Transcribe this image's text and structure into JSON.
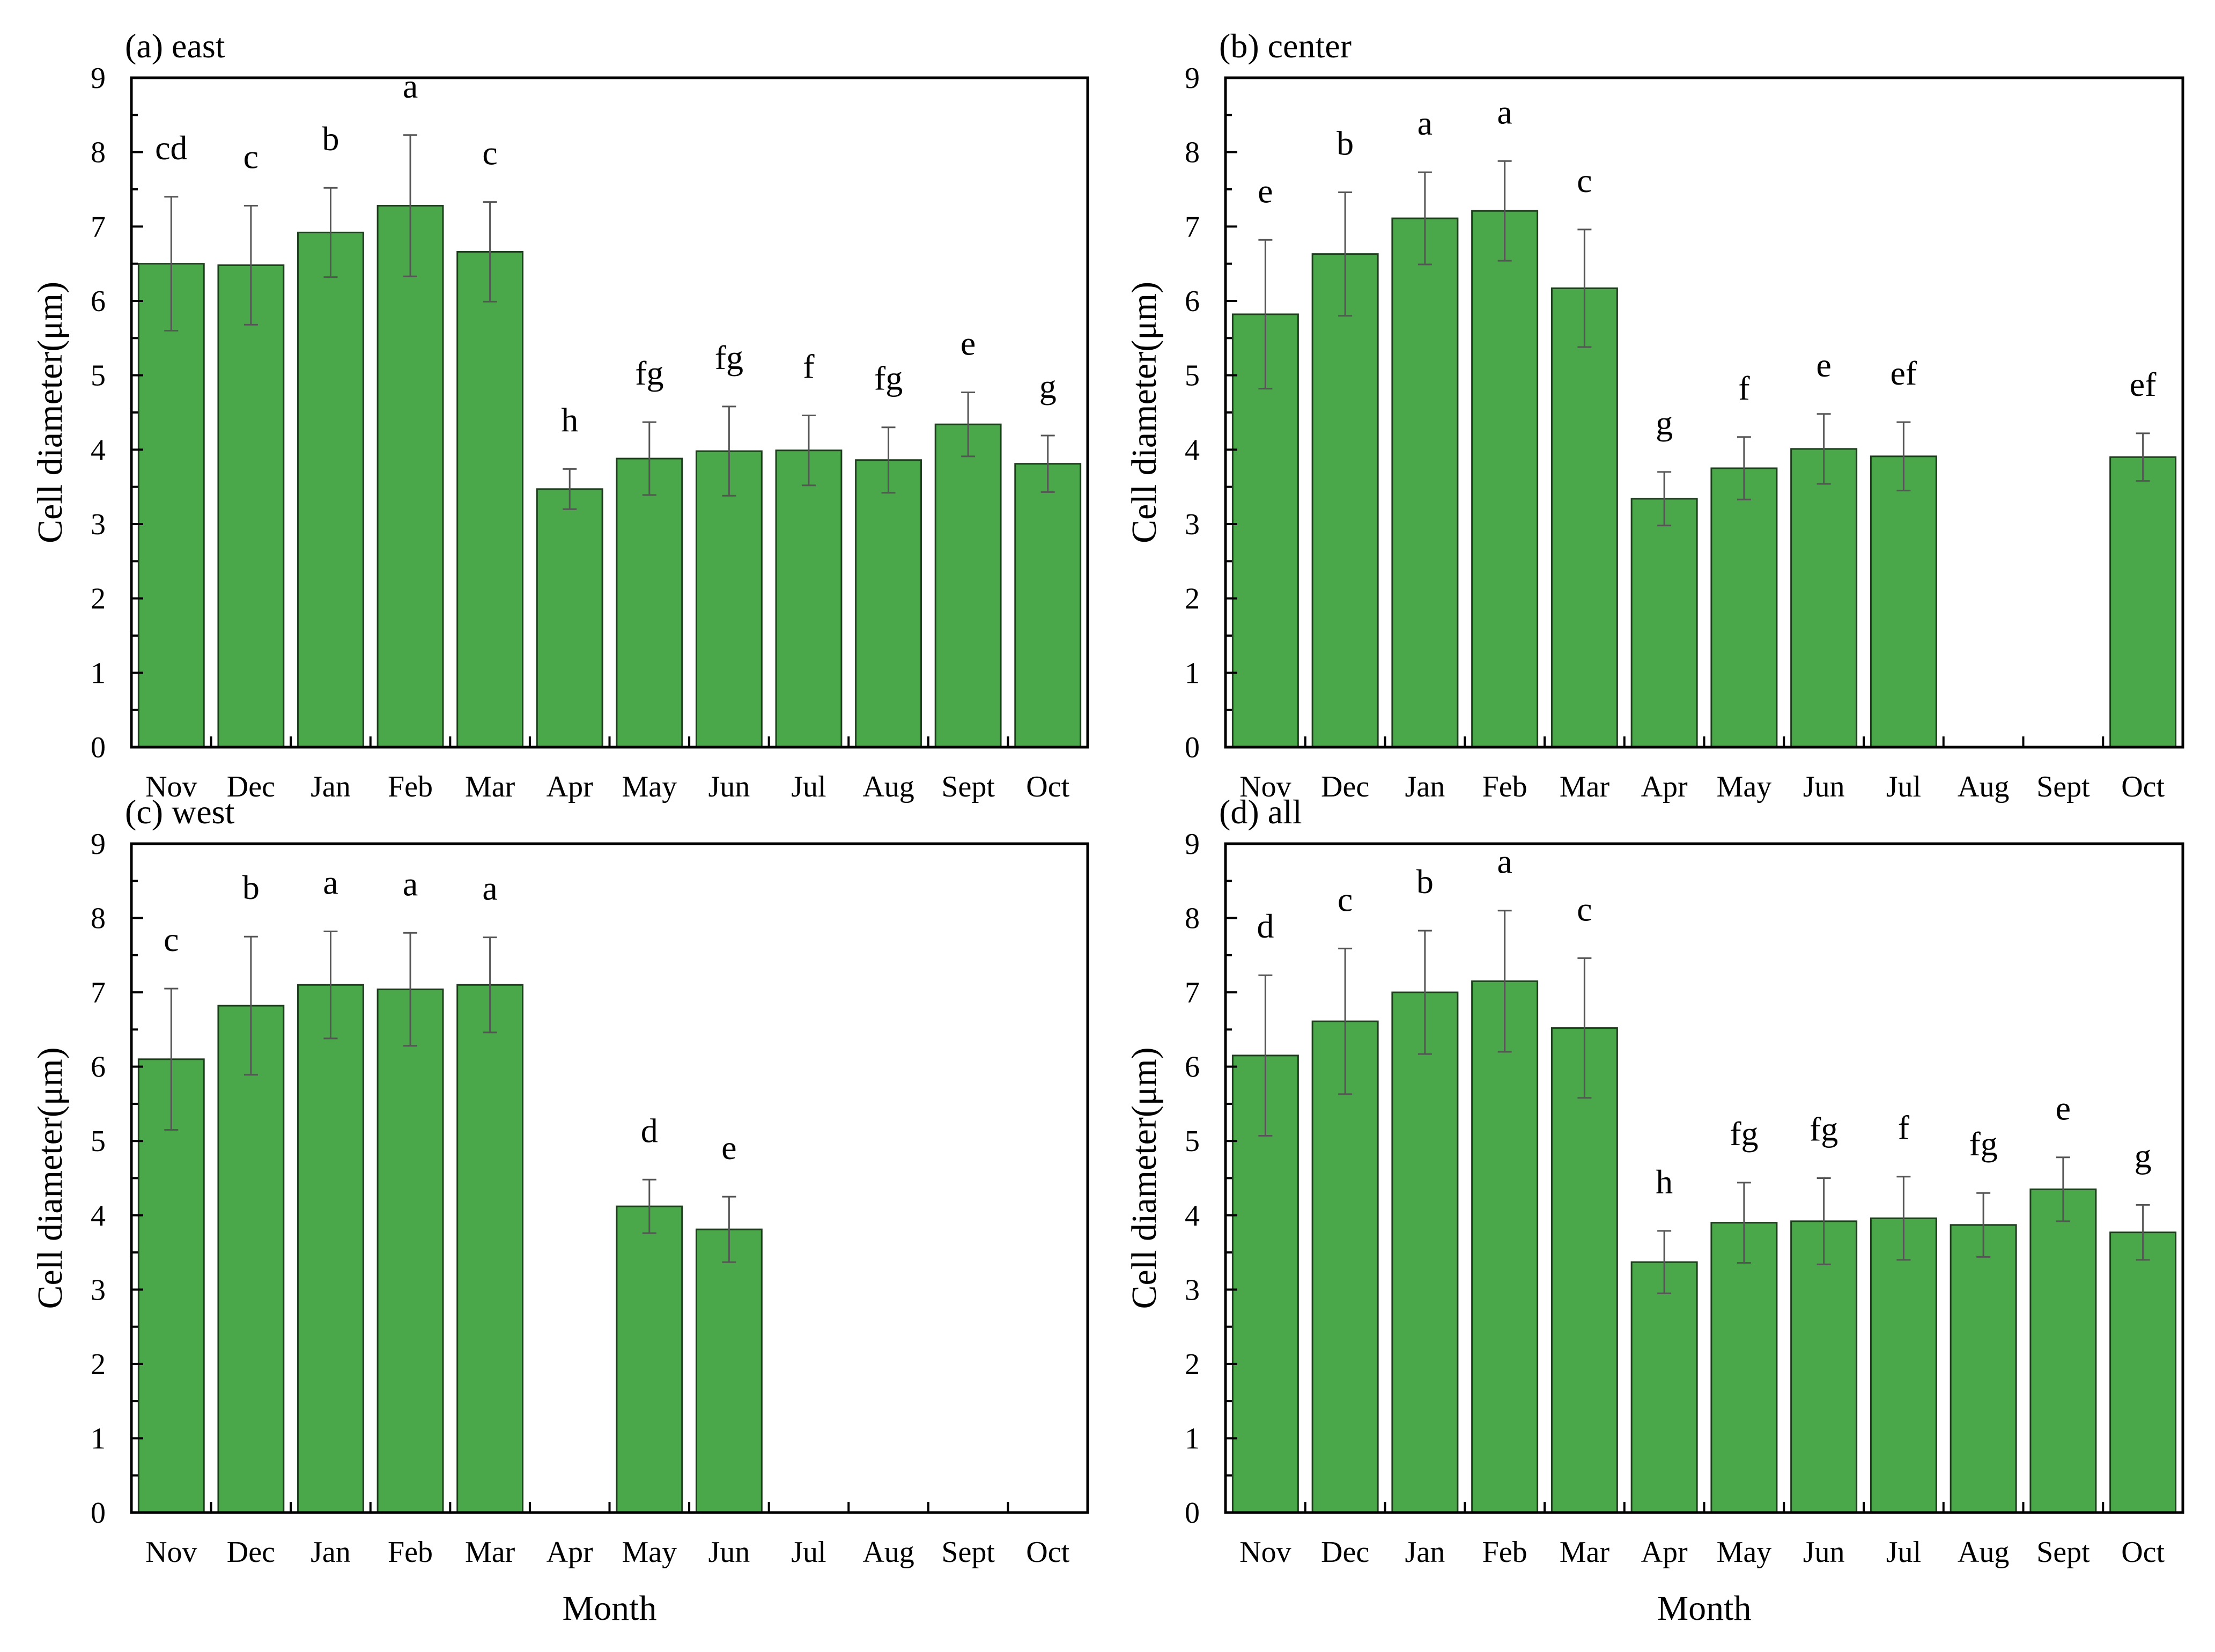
{
  "figure": {
    "y_axis_label": "Cell diameter(μm)",
    "x_axis_label": "Month"
  },
  "chart_data": [
    {
      "type": "bar",
      "title": "(a) east",
      "xlabel": "",
      "ylabel": "Cell diameter(μm)",
      "ylim": [
        0,
        9
      ],
      "yticks": [
        0,
        1,
        2,
        3,
        4,
        5,
        6,
        7,
        8,
        9
      ],
      "categories": [
        "Nov",
        "Dec",
        "Jan",
        "Feb",
        "Mar",
        "Apr",
        "May",
        "Jun",
        "Jul",
        "Aug",
        "Sept",
        "Oct"
      ],
      "values": [
        6.5,
        6.48,
        6.92,
        7.28,
        6.66,
        3.47,
        3.88,
        3.98,
        3.99,
        3.86,
        4.34,
        3.81
      ],
      "errors": [
        0.9,
        0.8,
        0.6,
        0.95,
        0.67,
        0.27,
        0.49,
        0.6,
        0.47,
        0.44,
        0.43,
        0.38
      ],
      "sig_letters": [
        "cd",
        "c",
        "b",
        "a",
        "c",
        "h",
        "fg",
        "fg",
        "f",
        "fg",
        "e",
        "g"
      ]
    },
    {
      "type": "bar",
      "title": "(b) center",
      "xlabel": "",
      "ylabel": "Cell diameter(μm)",
      "ylim": [
        0,
        9
      ],
      "yticks": [
        0,
        1,
        2,
        3,
        4,
        5,
        6,
        7,
        8,
        9
      ],
      "categories": [
        "Nov",
        "Dec",
        "Jan",
        "Feb",
        "Mar",
        "Apr",
        "May",
        "Jun",
        "Jul",
        "Aug",
        "Sept",
        "Oct"
      ],
      "values": [
        5.82,
        6.63,
        7.11,
        7.21,
        6.17,
        3.34,
        3.75,
        4.01,
        3.91,
        null,
        null,
        3.9
      ],
      "errors": [
        1.0,
        0.83,
        0.62,
        0.67,
        0.79,
        0.36,
        0.42,
        0.47,
        0.46,
        null,
        null,
        0.32
      ],
      "sig_letters": [
        "e",
        "b",
        "a",
        "a",
        "c",
        "g",
        "f",
        "e",
        "ef",
        "",
        "",
        "ef"
      ]
    },
    {
      "type": "bar",
      "title": "(c) west",
      "xlabel": "Month",
      "ylabel": "Cell diameter(μm)",
      "ylim": [
        0,
        9
      ],
      "yticks": [
        0,
        1,
        2,
        3,
        4,
        5,
        6,
        7,
        8,
        9
      ],
      "categories": [
        "Nov",
        "Dec",
        "Jan",
        "Feb",
        "Mar",
        "Apr",
        "May",
        "Jun",
        "Jul",
        "Aug",
        "Sept",
        "Oct"
      ],
      "values": [
        6.1,
        6.82,
        7.1,
        7.04,
        7.1,
        null,
        4.12,
        3.81,
        null,
        null,
        null,
        null
      ],
      "errors": [
        0.95,
        0.93,
        0.72,
        0.76,
        0.64,
        null,
        0.36,
        0.44,
        null,
        null,
        null,
        null
      ],
      "sig_letters": [
        "c",
        "b",
        "a",
        "a",
        "a",
        "",
        "d",
        "e",
        "",
        "",
        "",
        ""
      ]
    },
    {
      "type": "bar",
      "title": "(d) all",
      "xlabel": "Month",
      "ylabel": "Cell diameter(μm)",
      "ylim": [
        0,
        9
      ],
      "yticks": [
        0,
        1,
        2,
        3,
        4,
        5,
        6,
        7,
        8,
        9
      ],
      "categories": [
        "Nov",
        "Dec",
        "Jan",
        "Feb",
        "Mar",
        "Apr",
        "May",
        "Jun",
        "Jul",
        "Aug",
        "Sept",
        "Oct"
      ],
      "values": [
        6.15,
        6.61,
        7.0,
        7.15,
        6.52,
        3.37,
        3.9,
        3.92,
        3.96,
        3.87,
        4.35,
        3.77
      ],
      "errors": [
        1.08,
        0.98,
        0.83,
        0.95,
        0.94,
        0.42,
        0.54,
        0.58,
        0.56,
        0.43,
        0.43,
        0.37
      ],
      "sig_letters": [
        "d",
        "c",
        "b",
        "a",
        "c",
        "h",
        "fg",
        "fg",
        "f",
        "fg",
        "e",
        "g"
      ]
    }
  ]
}
